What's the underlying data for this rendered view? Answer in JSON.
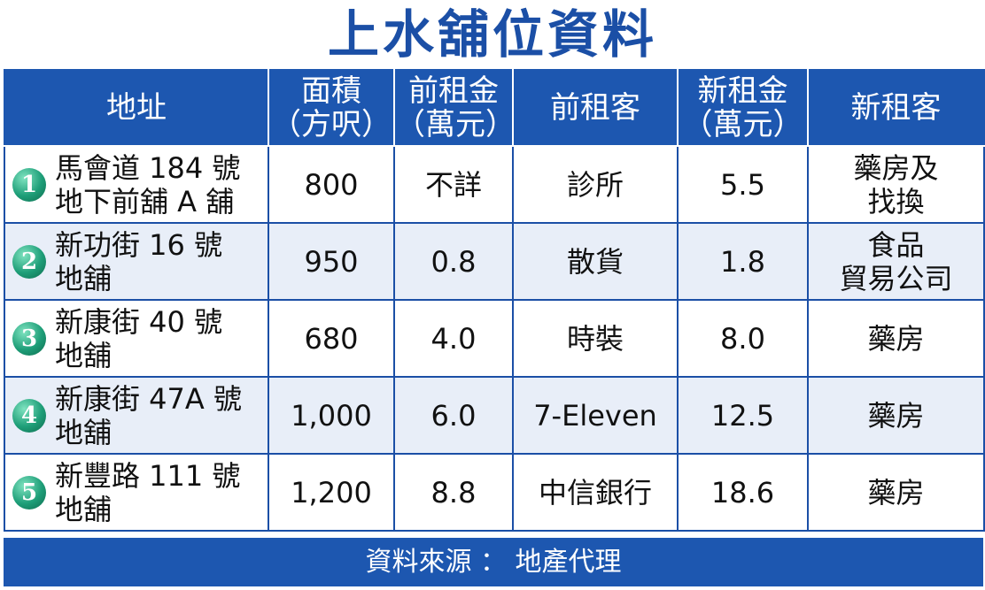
{
  "title": "上水舖位資料",
  "columns": {
    "address": "地址",
    "area": [
      "面積",
      "（方呎）"
    ],
    "old_rent": [
      "前租金",
      "（萬元）"
    ],
    "old_tenant": "前租客",
    "new_rent": [
      "新租金",
      "（萬元）"
    ],
    "new_tenant": "新租客"
  },
  "rows": [
    {
      "no": "1",
      "address": [
        "馬會道 184 號",
        "地下前舖 A 舖"
      ],
      "area": "800",
      "old_rent": "不詳",
      "old_tenant": "診所",
      "new_rent": "5.5",
      "new_tenant": [
        "藥房及",
        "找換"
      ]
    },
    {
      "no": "2",
      "address": [
        "新功街 16 號",
        "地舖"
      ],
      "area": "950",
      "old_rent": "0.8",
      "old_tenant": "散貨",
      "new_rent": "1.8",
      "new_tenant": [
        "食品",
        "貿易公司"
      ]
    },
    {
      "no": "3",
      "address": [
        "新康街 40 號",
        "地舖"
      ],
      "area": "680",
      "old_rent": "4.0",
      "old_tenant": "時裝",
      "new_rent": "8.0",
      "new_tenant": [
        "藥房"
      ]
    },
    {
      "no": "4",
      "address": [
        "新康街 47A 號",
        "地舖"
      ],
      "area": "1,000",
      "old_rent": "6.0",
      "old_tenant": "7-Eleven",
      "new_rent": "12.5",
      "new_tenant": [
        "藥房"
      ]
    },
    {
      "no": "5",
      "address": [
        "新豐路 111 號",
        "地舖"
      ],
      "area": "1,200",
      "old_rent": "8.8",
      "old_tenant": "中信銀行",
      "new_rent": "18.6",
      "new_tenant": [
        "藥房"
      ]
    }
  ],
  "footer": "資料來源 ： 地產代理",
  "colors": {
    "header_bg": "#1d57b0",
    "title": "#1b4fa6",
    "row_alt": "#e8eef8",
    "badge": "#1e9e78"
  }
}
